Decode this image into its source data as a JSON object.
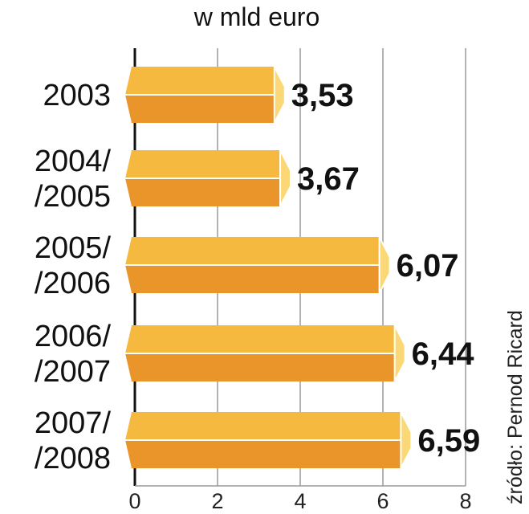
{
  "colors": {
    "bar_top": "#f5b93f",
    "bar_bottom": "#e9952a",
    "bar_end": "#fbd877",
    "bar_edge": "#ffffff",
    "grid": "#9a9a9a",
    "axis": "#111111"
  },
  "source": "źródło: Pernod Ricard",
  "chart_data": {
    "type": "bar",
    "orientation": "horizontal",
    "title": "w mld euro",
    "categories": [
      [
        "2003"
      ],
      [
        "2004/",
        "/2005"
      ],
      [
        "2005/",
        "/2006"
      ],
      [
        "2006/",
        "/2007"
      ],
      [
        "2007/",
        "/2008"
      ]
    ],
    "values": [
      3.53,
      3.67,
      6.07,
      6.44,
      6.59
    ],
    "value_labels": [
      "3,53",
      "3,67",
      "6,07",
      "6,44",
      "6,59"
    ],
    "xlim": [
      0,
      8
    ],
    "xticks": [
      0,
      2,
      4,
      6,
      8
    ],
    "grid": true
  }
}
